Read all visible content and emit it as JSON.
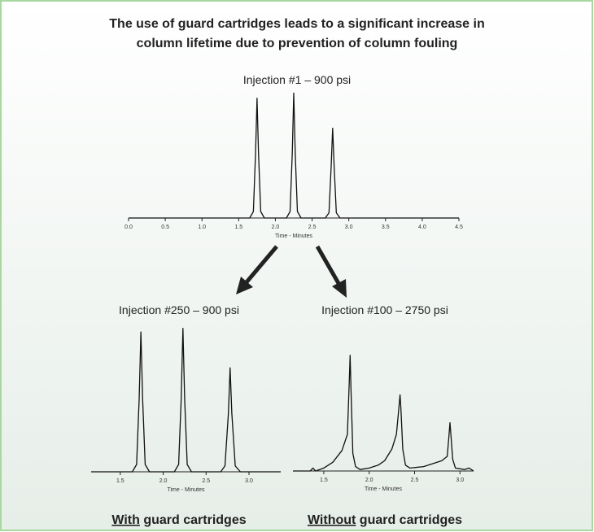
{
  "title": [
    "The use of guard cartridges leads to a significant increase in",
    "column lifetime due to prevention of column fouling"
  ],
  "chart_data": [
    {
      "type": "line",
      "title": "Injection #1 – 900 psi",
      "xlabel": "Time - Minutes",
      "x": [
        0,
        1.65,
        1.7,
        1.73,
        1.75,
        1.77,
        1.8,
        1.85,
        2.15,
        2.2,
        2.23,
        2.25,
        2.27,
        2.3,
        2.35,
        2.68,
        2.73,
        2.76,
        2.78,
        2.8,
        2.83,
        2.88,
        4.5
      ],
      "series": [
        {
          "color": "#111111",
          "values": [
            0,
            0,
            5,
            50,
            92,
            50,
            5,
            0,
            0,
            5,
            50,
            96,
            50,
            5,
            0,
            0,
            4,
            40,
            69,
            40,
            4,
            0,
            0
          ]
        }
      ],
      "xlim": [
        0,
        4.5
      ],
      "xticks": [
        {
          "value": 0,
          "label": "0.0"
        },
        0.5,
        {
          "value": 1,
          "label": "1.0"
        },
        1.5,
        {
          "value": 2,
          "label": "2.0"
        },
        2.5,
        {
          "value": 3,
          "label": "3.0"
        },
        3.5,
        {
          "value": 4,
          "label": "4.0"
        },
        4.5
      ]
    },
    {
      "type": "line",
      "title": "Injection #250 – 900 psi",
      "xlabel": "Time - Minutes",
      "x": [
        1.16,
        1.64,
        1.69,
        1.72,
        1.74,
        1.76,
        1.79,
        1.84,
        2.13,
        2.18,
        2.21,
        2.23,
        2.25,
        2.28,
        2.33,
        2.67,
        2.72,
        2.76,
        2.78,
        2.8,
        2.84,
        2.9,
        3.37
      ],
      "series": [
        {
          "color": "#111111",
          "values": [
            0,
            0,
            5,
            50,
            95.5,
            50,
            5,
            0,
            0,
            5,
            50,
            98,
            50,
            5,
            0,
            0,
            4,
            40,
            71,
            40,
            4,
            0,
            0
          ]
        }
      ],
      "xlim": [
        1.16,
        3.37
      ],
      "xticks": [
        1.5,
        {
          "value": 2,
          "label": "2.0"
        },
        2.5,
        {
          "value": 3,
          "label": "3.0"
        }
      ]
    },
    {
      "type": "line",
      "title": "Injection #100 – 2750 psi",
      "xlabel": "Time - Minutes",
      "x": [
        1.16,
        1.35,
        1.38,
        1.41,
        1.5,
        1.6,
        1.7,
        1.76,
        1.78,
        1.79,
        1.8,
        1.82,
        1.85,
        1.9,
        2,
        2.1,
        2.17,
        2.2,
        2.25,
        2.3,
        2.33,
        2.34,
        2.35,
        2.37,
        2.4,
        2.45,
        2.6,
        2.8,
        2.86,
        2.88,
        2.89,
        2.9,
        2.92,
        2.95,
        3.05,
        3.1,
        3.15
      ],
      "series": [
        {
          "color": "#111111",
          "values": [
            0,
            0,
            2,
            0,
            2,
            6,
            14,
            25,
            60,
            79,
            55,
            12,
            3,
            1,
            2,
            4,
            7,
            10,
            15,
            25,
            45,
            52,
            42,
            15,
            4,
            2,
            3,
            7,
            10,
            25,
            33,
            25,
            8,
            2,
            1,
            2,
            0
          ]
        }
      ],
      "xlim": [
        1.16,
        3.15
      ],
      "xticks": [
        1.5,
        {
          "value": 2,
          "label": "2.0"
        },
        2.5,
        {
          "value": 3,
          "label": "3.0"
        }
      ]
    }
  ],
  "captions": [
    {
      "emphasis": "With",
      "text": " guard cartridges"
    },
    {
      "emphasis": "Without",
      "text": " guard cartridges"
    }
  ]
}
